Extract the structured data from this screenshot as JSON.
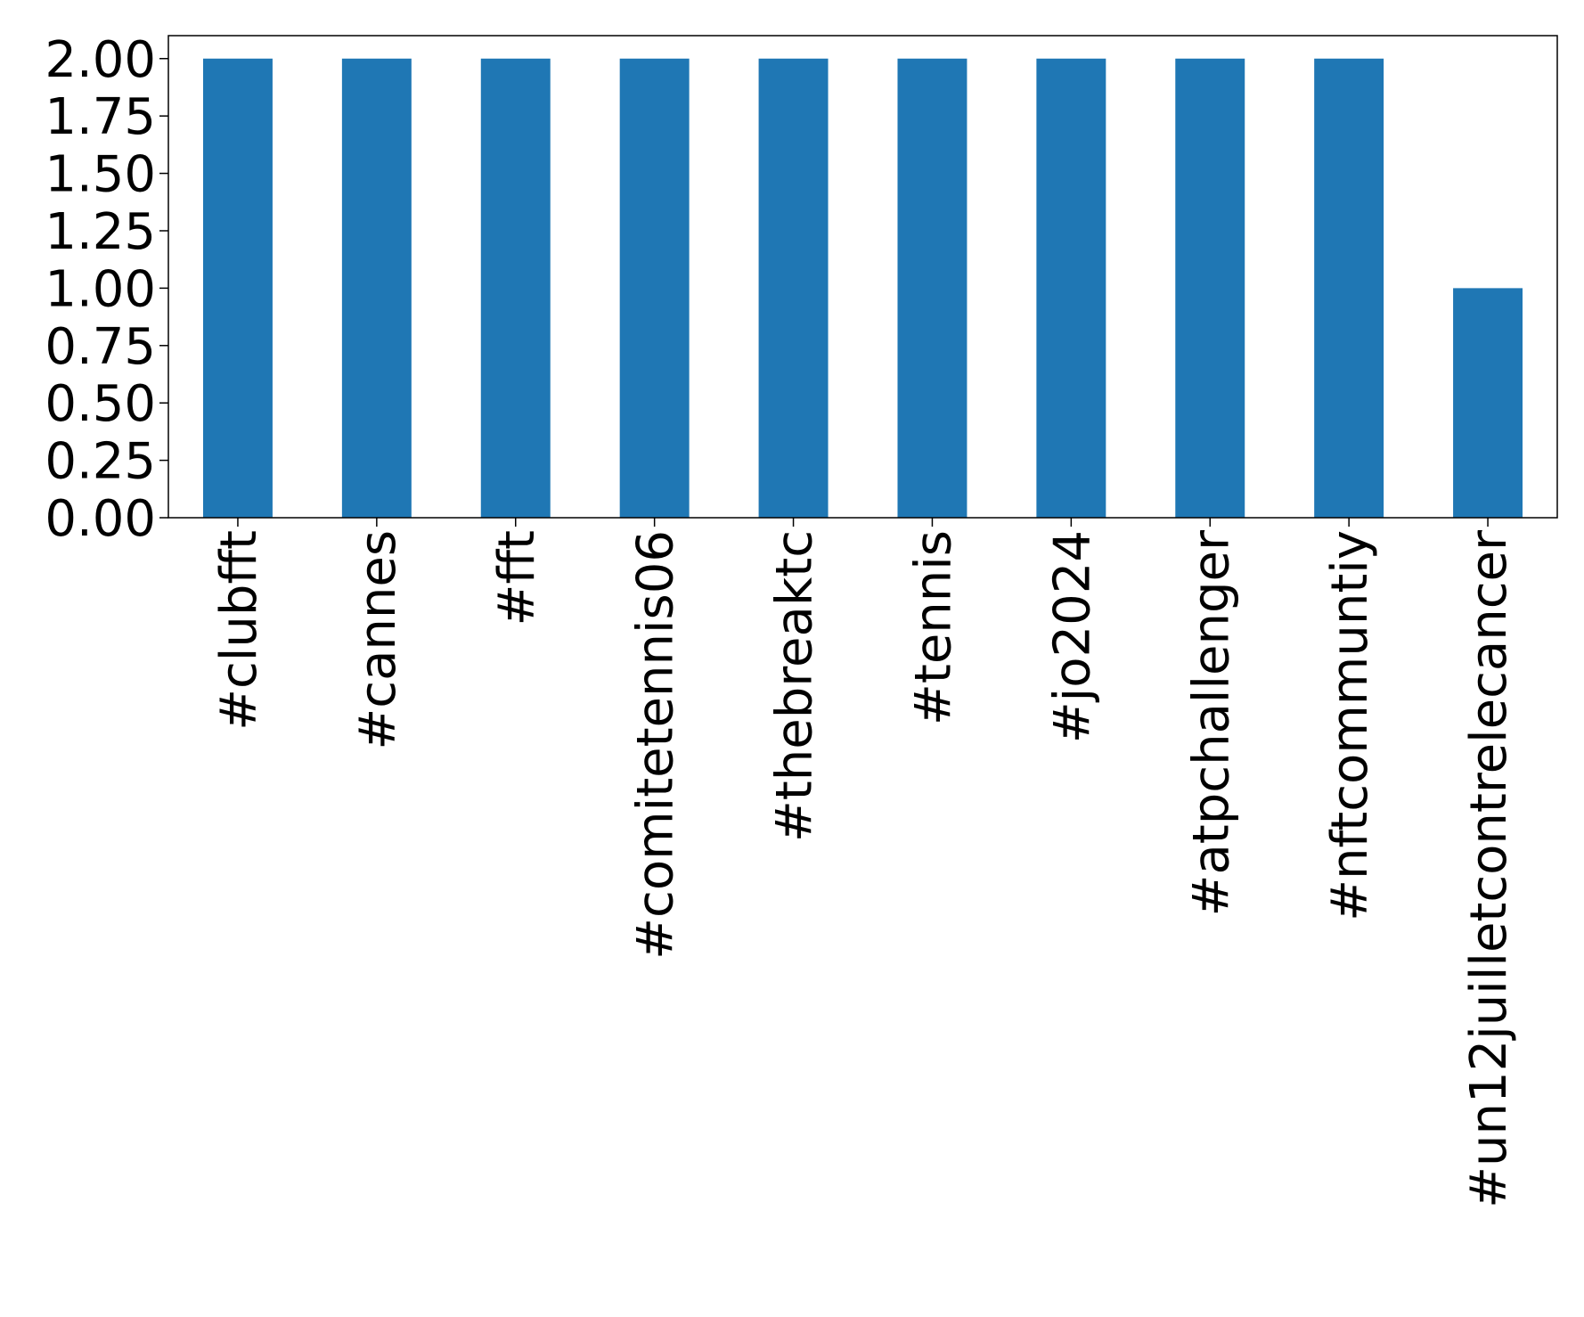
{
  "chart_data": {
    "type": "bar",
    "categories": [
      "#clubfft",
      "#cannes",
      "#fft",
      "#comitetennis06",
      "#thebreaktc",
      "#tennis",
      "#jo2024",
      "#atpchallenger",
      "#nftcommuntiy",
      "#un12juilletcontrelecancer"
    ],
    "values": [
      2,
      2,
      2,
      2,
      2,
      2,
      2,
      2,
      2,
      1
    ],
    "color": "#1f77b4",
    "ylim": [
      0,
      2.1
    ],
    "yticks": [
      {
        "value": 0,
        "label": "0.00"
      },
      {
        "value": 0.25,
        "label": "0.25"
      },
      {
        "value": 0.5,
        "label": "0.50"
      },
      {
        "value": 0.75,
        "label": "0.75"
      },
      {
        "value": 1,
        "label": "1.00"
      },
      {
        "value": 1.25,
        "label": "1.25"
      },
      {
        "value": 1.5,
        "label": "1.50"
      },
      {
        "value": 1.75,
        "label": "1.75"
      },
      {
        "value": 2,
        "label": "2.00"
      }
    ],
    "grid": false
  }
}
